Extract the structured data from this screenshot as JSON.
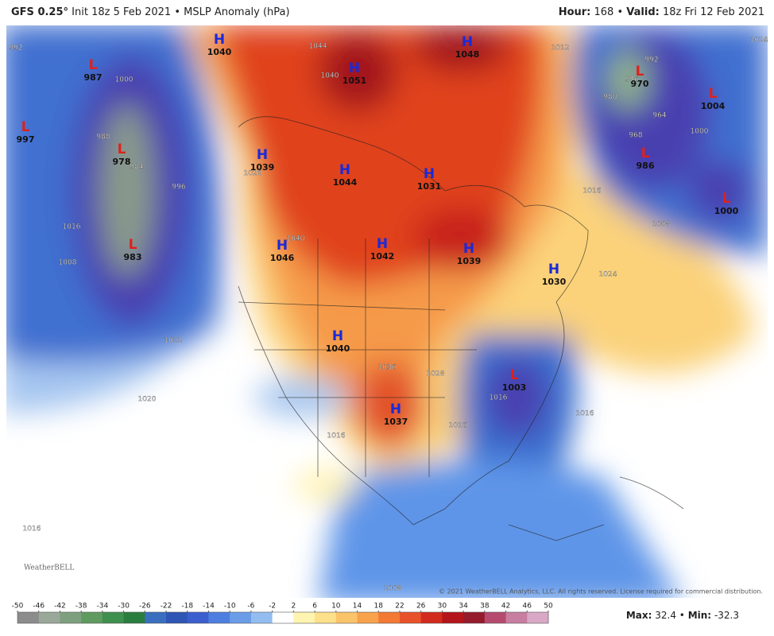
{
  "header": {
    "model": "GFS 0.25°",
    "info": "Init 18z 5 Feb 2021 • MSLP Anomaly (hPa)",
    "hour_label": "Hour:",
    "hour": "168 •",
    "valid_label": "Valid:",
    "valid": "18z Fri 12 Feb 2021"
  },
  "centers": [
    {
      "type": "H",
      "value": 1040
    },
    {
      "type": "L",
      "value": 987
    },
    {
      "type": "H",
      "value": 1051
    },
    {
      "type": "H",
      "value": 1048
    },
    {
      "type": "L",
      "value": 970
    },
    {
      "type": "L",
      "value": 1004
    },
    {
      "type": "L",
      "value": 997
    },
    {
      "type": "L",
      "value": 978
    },
    {
      "type": "H",
      "value": 1039
    },
    {
      "type": "H",
      "value": 1044
    },
    {
      "type": "H",
      "value": 1031
    },
    {
      "type": "L",
      "value": 986
    },
    {
      "type": "L",
      "value": 1000
    },
    {
      "type": "L",
      "value": 983
    },
    {
      "type": "H",
      "value": 1046
    },
    {
      "type": "H",
      "value": 1042
    },
    {
      "type": "H",
      "value": 1039
    },
    {
      "type": "H",
      "value": 1030
    },
    {
      "type": "H",
      "value": 1040
    },
    {
      "type": "L",
      "value": 1003
    },
    {
      "type": "H",
      "value": 1037
    }
  ],
  "isobar_labels": [
    992,
    1000,
    988,
    984,
    996,
    1008,
    1012,
    1020,
    1016,
    1016,
    1016,
    1020,
    1044,
    1040,
    1040,
    1012,
    1024,
    992,
    976,
    980,
    964,
    968,
    1000,
    1008,
    1016,
    1024,
    1036,
    1028,
    1016,
    1016,
    1008,
    1016
  ],
  "colorbar": {
    "ticks": [
      -50,
      -46,
      -42,
      -38,
      -34,
      -30,
      -26,
      -22,
      -18,
      -14,
      -10,
      -6,
      -2,
      2,
      6,
      10,
      14,
      18,
      22,
      26,
      30,
      34,
      38,
      42,
      46,
      50
    ],
    "colors": [
      "#8c8c8c",
      "#9aa89a",
      "#7fa07f",
      "#5f9a5f",
      "#3f8f4f",
      "#2a7d3e",
      "#3a6fbf",
      "#2f55b5",
      "#3b5fcf",
      "#4d7fe0",
      "#6a9ce8",
      "#93bdf0",
      "#ffffff",
      "#fff3b0",
      "#fde08a",
      "#fbc46a",
      "#f8a24c",
      "#f27a34",
      "#e8522a",
      "#d22b1e",
      "#b3151a",
      "#941b2c",
      "#b54a6e",
      "#c77ea0",
      "#d8a8c6"
    ]
  },
  "stats": {
    "max_label": "Max:",
    "max": 32.4,
    "separator": "•",
    "min_label": "Min:",
    "min": -32.3
  },
  "copyright": "© 2021 WeatherBELL Analytics, LLC. All rights reserved. License required for commercial distribution.",
  "logo": "WeatherBELL"
}
